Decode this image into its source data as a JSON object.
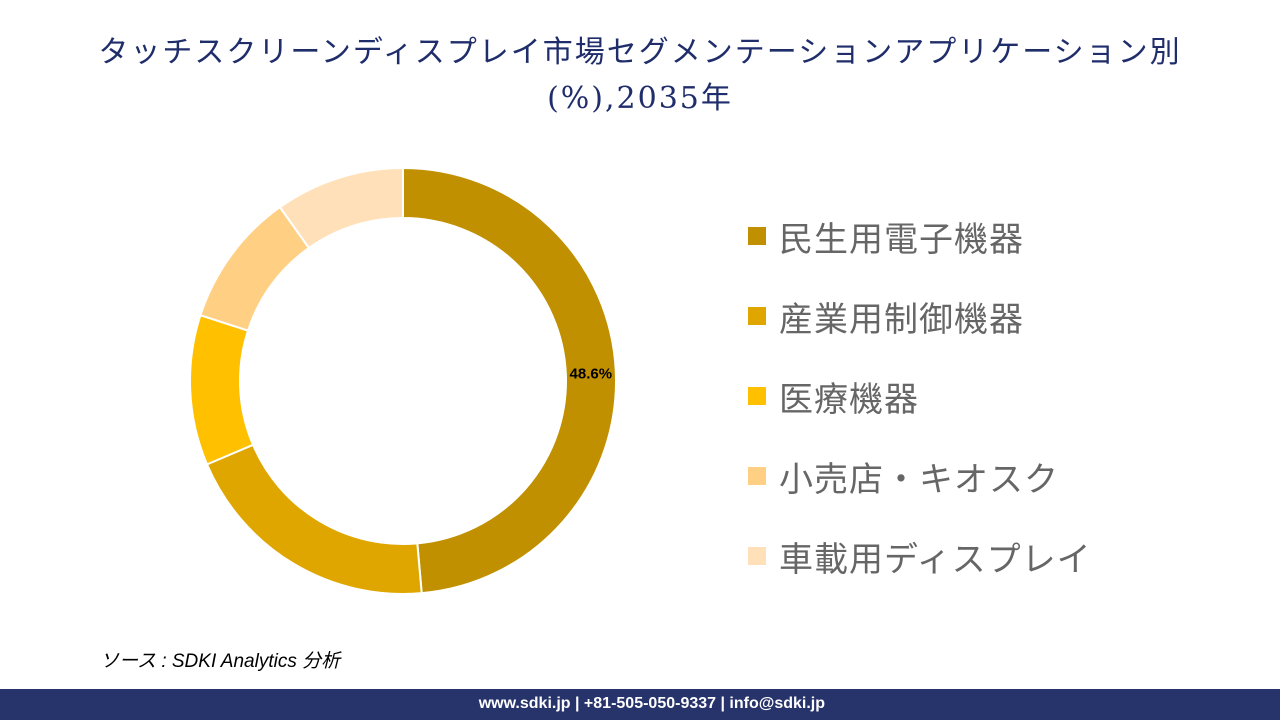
{
  "chart_data": {
    "type": "pie",
    "donut": true,
    "title": "タッチスクリーンディスプレイ市場セグメンテーションアプリケーション別(%),2035年",
    "categories": [
      "民生用電子機器",
      "産業用制御機器",
      "医療機器",
      "小売店・キオスク",
      "車載用ディスプレイ"
    ],
    "values": [
      48.6,
      20.0,
      11.4,
      10.2,
      9.8
    ],
    "colors": [
      "#C09000",
      "#E0A600",
      "#FFC000",
      "#FFD084",
      "#FFE0B8"
    ],
    "data_labels": [
      "48.6%",
      "",
      "",
      "",
      ""
    ],
    "legend_position": "right"
  },
  "source": "ソース : SDKI Analytics 分析",
  "footer": "www.sdki.jp | +81-505-050-9337 | info@sdki.jp"
}
